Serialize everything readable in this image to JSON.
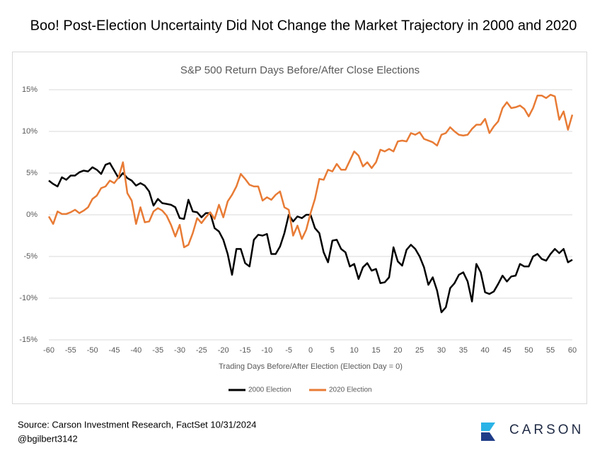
{
  "chart_data": {
    "type": "line",
    "page_title": "Boo! Post-Election Uncertainty Did Not Change the Market Trajectory in 2000 and 2020",
    "title": "S&P 500 Return Days Before/After Close Elections",
    "x_label": "Trading Days Before/After Election (Election Day = 0)",
    "source": "Source: Carson Investment Research, FactSet 10/31/2024",
    "handle": "@bgilbert3142",
    "brand": "CARSON",
    "x": [
      -60,
      -59,
      -58,
      -57,
      -56,
      -55,
      -54,
      -53,
      -52,
      -51,
      -50,
      -49,
      -48,
      -47,
      -46,
      -45,
      -44,
      -43,
      -42,
      -41,
      -40,
      -39,
      -38,
      -37,
      -36,
      -35,
      -34,
      -33,
      -32,
      -31,
      -30,
      -29,
      -28,
      -27,
      -26,
      -25,
      -24,
      -23,
      -22,
      -21,
      -20,
      -19,
      -18,
      -17,
      -16,
      -15,
      -14,
      -13,
      -12,
      -11,
      -10,
      -9,
      -8,
      -7,
      -6,
      -5,
      -4,
      -3,
      -2,
      -1,
      0,
      1,
      2,
      3,
      4,
      5,
      6,
      7,
      8,
      9,
      10,
      11,
      12,
      13,
      14,
      15,
      16,
      17,
      18,
      19,
      20,
      21,
      22,
      23,
      24,
      25,
      26,
      27,
      28,
      29,
      30,
      31,
      32,
      33,
      34,
      35,
      36,
      37,
      38,
      39,
      40,
      41,
      42,
      43,
      44,
      45,
      46,
      47,
      48,
      49,
      50,
      51,
      52,
      53,
      54,
      55,
      56,
      57,
      58,
      59,
      60
    ],
    "xlim": [
      -60,
      60
    ],
    "xticks": [
      -60,
      -55,
      -50,
      -45,
      -40,
      -35,
      -30,
      -25,
      -20,
      -15,
      -10,
      -5,
      0,
      5,
      10,
      15,
      20,
      25,
      30,
      35,
      40,
      45,
      50,
      55,
      60
    ],
    "ylim": [
      -15,
      15
    ],
    "yticks": [
      {
        "value": -15,
        "label": "-15%"
      },
      {
        "value": -10,
        "label": "-10%"
      },
      {
        "value": -5,
        "label": "-5%"
      },
      {
        "value": 0,
        "label": "0%"
      },
      {
        "value": 5,
        "label": "5%"
      },
      {
        "value": 10,
        "label": "10%"
      },
      {
        "value": 15,
        "label": "15%"
      }
    ],
    "grid": true,
    "legend": "bottom",
    "series": [
      {
        "name": "2000 Election",
        "color": "#000000",
        "values": [
          4.1,
          3.7,
          3.4,
          4.5,
          4.2,
          4.7,
          4.7,
          5.1,
          5.3,
          5.2,
          5.7,
          5.4,
          4.9,
          6.0,
          6.2,
          5.3,
          4.4,
          5.0,
          4.4,
          4.1,
          3.5,
          3.8,
          3.5,
          2.8,
          1.1,
          1.9,
          1.4,
          1.3,
          1.2,
          0.9,
          -0.4,
          -0.5,
          1.8,
          0.4,
          0.3,
          -0.3,
          0.2,
          0.2,
          -1.6,
          -2.0,
          -3.0,
          -4.7,
          -7.2,
          -4.1,
          -4.1,
          -5.8,
          -6.2,
          -3.0,
          -2.4,
          -2.5,
          -2.3,
          -4.7,
          -4.7,
          -3.8,
          -2.2,
          0.0,
          -0.8,
          -0.2,
          -0.4,
          0.0,
          0.0,
          -1.6,
          -2.2,
          -4.5,
          -5.7,
          -3.1,
          -3.0,
          -4.1,
          -4.5,
          -6.2,
          -5.9,
          -7.7,
          -6.3,
          -5.8,
          -6.7,
          -6.5,
          -8.2,
          -8.1,
          -7.5,
          -3.9,
          -5.6,
          -6.1,
          -4.2,
          -3.6,
          -4.1,
          -5.0,
          -6.3,
          -8.4,
          -7.5,
          -9.1,
          -11.7,
          -11.1,
          -8.8,
          -8.2,
          -7.2,
          -6.9,
          -8.0,
          -10.4,
          -5.9,
          -6.9,
          -9.3,
          -9.5,
          -9.2,
          -8.3,
          -7.3,
          -8.0,
          -7.4,
          -7.3,
          -5.9,
          -6.2,
          -6.2,
          -5.0,
          -4.7,
          -5.3,
          -5.5,
          -4.7,
          -4.1,
          -4.6,
          -4.1,
          -5.7,
          -5.4
        ]
      },
      {
        "name": "2020 Election",
        "color": "#e87b35",
        "values": [
          -0.2,
          -1.1,
          0.4,
          0.1,
          0.1,
          0.3,
          0.6,
          0.2,
          0.5,
          0.9,
          1.9,
          2.3,
          3.2,
          3.4,
          4.1,
          3.8,
          4.5,
          6.3,
          2.6,
          1.7,
          -1.1,
          0.9,
          -0.9,
          -0.8,
          0.4,
          0.8,
          0.5,
          -0.1,
          -1.2,
          -2.6,
          -1.2,
          -3.9,
          -3.6,
          -2.2,
          -0.4,
          -1.0,
          -0.3,
          0.3,
          -0.5,
          1.2,
          -0.3,
          1.6,
          2.4,
          3.4,
          4.9,
          4.3,
          3.6,
          3.4,
          3.4,
          1.7,
          2.1,
          1.8,
          2.4,
          2.8,
          0.9,
          0.6,
          -2.5,
          -1.3,
          -2.9,
          -1.8,
          0.2,
          1.9,
          4.3,
          4.2,
          5.4,
          5.2,
          6.1,
          5.4,
          5.4,
          6.5,
          7.6,
          7.1,
          5.8,
          6.3,
          5.6,
          6.3,
          7.8,
          7.6,
          7.9,
          7.6,
          8.8,
          8.9,
          8.8,
          9.8,
          9.6,
          9.9,
          9.1,
          8.9,
          8.7,
          8.3,
          9.6,
          9.8,
          10.5,
          10.0,
          9.6,
          9.5,
          9.6,
          10.3,
          10.8,
          10.8,
          11.5,
          9.8,
          10.6,
          11.2,
          12.8,
          13.5,
          12.8,
          12.9,
          13.1,
          12.7,
          11.8,
          12.8,
          14.3,
          14.3,
          14.0,
          14.4,
          14.2,
          11.4,
          12.4,
          10.2,
          12.0
        ]
      }
    ]
  }
}
